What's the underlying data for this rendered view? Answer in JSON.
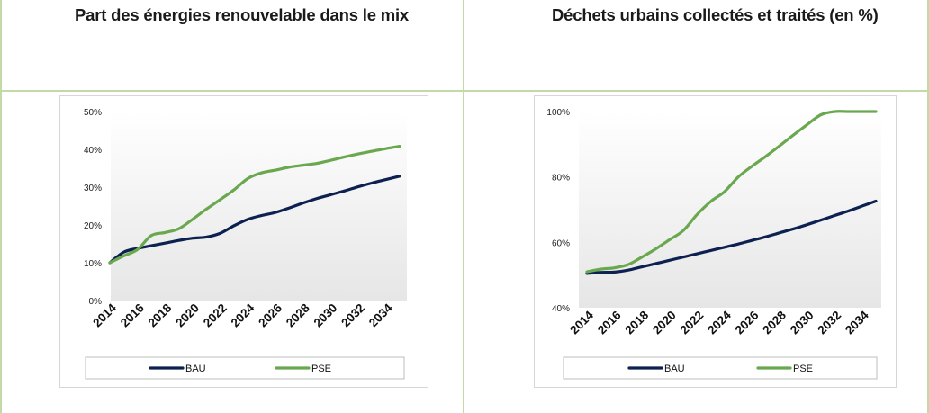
{
  "chart_data": [
    {
      "type": "line",
      "title": "Part des énergies renouvelable dans le mix",
      "x": [
        2014,
        2015,
        2016,
        2017,
        2018,
        2019,
        2020,
        2021,
        2022,
        2023,
        2024,
        2025,
        2026,
        2027,
        2028,
        2029,
        2030,
        2031,
        2032,
        2033,
        2034,
        2035
      ],
      "x_ticks": [
        "2014",
        "2016",
        "2018",
        "2020",
        "2022",
        "2024",
        "2026",
        "2028",
        "2030",
        "2032",
        "2034"
      ],
      "y_ticks": [
        "0%",
        "10%",
        "20%",
        "30%",
        "40%",
        "50%"
      ],
      "ylim": [
        0,
        50
      ],
      "series": [
        {
          "name": "BAU",
          "color": "#0d2151",
          "values": [
            10,
            12.8,
            13.8,
            14.5,
            15.2,
            15.9,
            16.5,
            16.8,
            17.8,
            19.8,
            21.5,
            22.5,
            23.3,
            24.5,
            25.8,
            27,
            28,
            29,
            30.1,
            31.1,
            32,
            32.9
          ]
        },
        {
          "name": "PSE",
          "color": "#6aa84f",
          "values": [
            10,
            11.8,
            13.5,
            17.2,
            18.0,
            19.0,
            21.5,
            24.2,
            26.7,
            29.3,
            32.3,
            33.8,
            34.5,
            35.3,
            35.8,
            36.3,
            37.1,
            38.0,
            38.8,
            39.5,
            40.2,
            40.8
          ]
        }
      ],
      "legend": "bottom"
    },
    {
      "type": "line",
      "title": "Déchets urbains collectés et traités (en %)",
      "x": [
        2014,
        2015,
        2016,
        2017,
        2018,
        2019,
        2020,
        2021,
        2022,
        2023,
        2024,
        2025,
        2026,
        2027,
        2028,
        2029,
        2030,
        2031,
        2032,
        2033,
        2034,
        2035
      ],
      "x_ticks": [
        "2014",
        "2016",
        "2018",
        "2020",
        "2022",
        "2024",
        "2026",
        "2028",
        "2030",
        "2032",
        "2034"
      ],
      "y_ticks": [
        "40%",
        "60%",
        "80%",
        "100%"
      ],
      "ylim": [
        40,
        100
      ],
      "series": [
        {
          "name": "BAU",
          "color": "#0d2151",
          "values": [
            50.5,
            50.8,
            50.9,
            51.5,
            52.5,
            53.5,
            54.5,
            55.5,
            56.5,
            57.5,
            58.5,
            59.5,
            60.6,
            61.7,
            62.9,
            64.1,
            65.4,
            66.8,
            68.2,
            69.6,
            71.1,
            72.6
          ]
        },
        {
          "name": "PSE",
          "color": "#6aa84f",
          "values": [
            51,
            51.8,
            52.2,
            53.2,
            55.5,
            58,
            60.8,
            63.6,
            68.5,
            72.5,
            75.5,
            80,
            83.3,
            86.3,
            89.5,
            92.8,
            96,
            99,
            100,
            100,
            100,
            100
          ]
        }
      ],
      "legend": "bottom"
    }
  ]
}
